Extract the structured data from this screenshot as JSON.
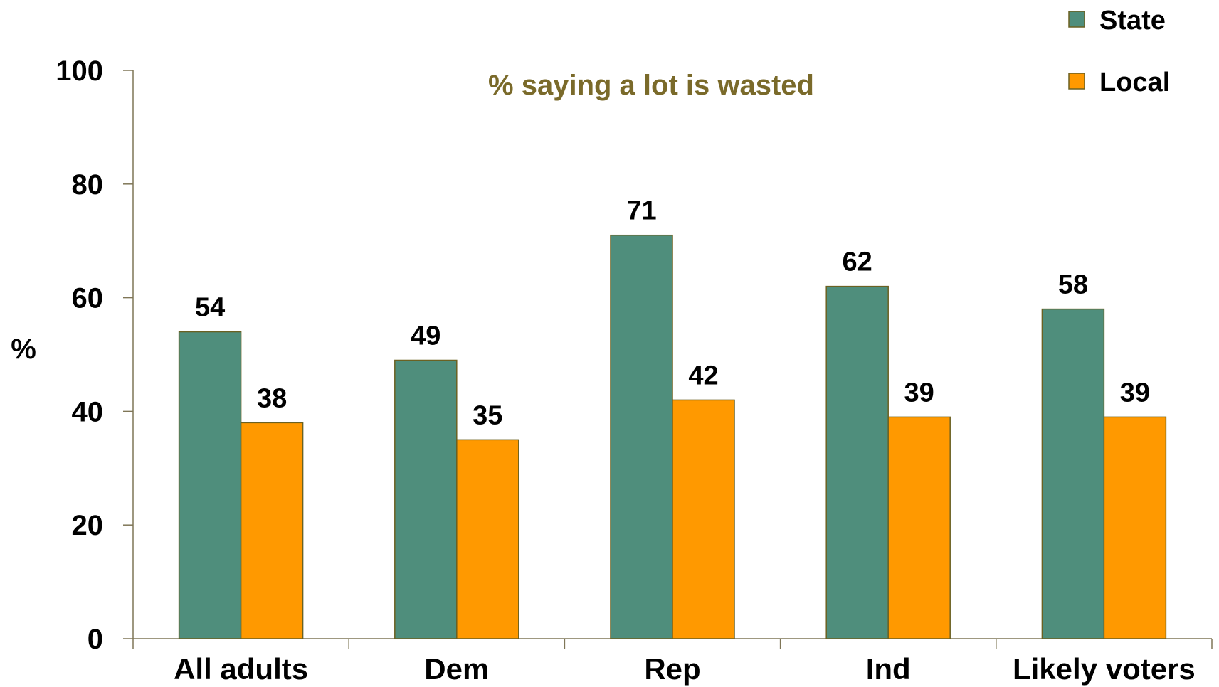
{
  "chart_data": {
    "type": "bar",
    "title": "",
    "subtitle": "% saying a lot is wasted",
    "xlabel": "",
    "ylabel": "%",
    "ylim": [
      0,
      100
    ],
    "yticks": [
      0,
      20,
      40,
      60,
      80,
      100
    ],
    "grid": false,
    "legend_position": "top-right",
    "categories": [
      "All adults",
      "Dem",
      "Rep",
      "Ind",
      "Likely voters"
    ],
    "series": [
      {
        "name": "State",
        "values": [
          54,
          49,
          71,
          62,
          58
        ],
        "color": "#4f8e7c"
      },
      {
        "name": "Local",
        "values": [
          38,
          35,
          42,
          39,
          39
        ],
        "color": "#ff9900"
      }
    ],
    "subtitle_color": "#7a6a2a",
    "axis_color": "#7f7657"
  }
}
